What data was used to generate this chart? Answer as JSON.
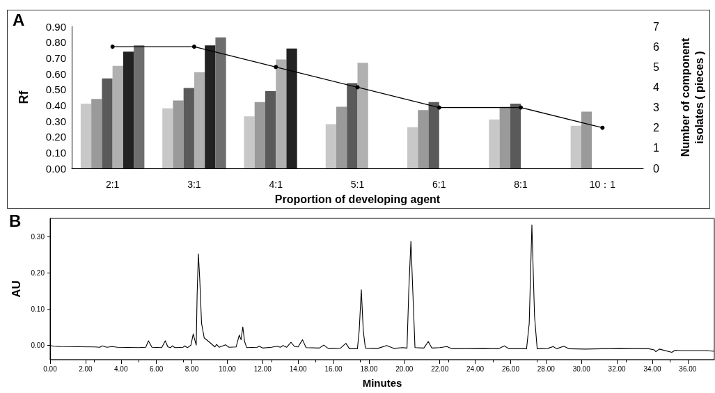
{
  "chart_data": [
    {
      "type": "bar",
      "title": "A",
      "xlabel": "Proportion of developing agent",
      "ylabel": "Rf",
      "y2label": "Number of component isolates ( pieces )",
      "categories": [
        "2:1",
        "3:1",
        "4:1",
        "5:1",
        "6:1",
        "8:1",
        "10：1"
      ],
      "series": [
        {
          "color": "#c8c8c8",
          "values": [
            0.41,
            0.38,
            0.33,
            0.28,
            0.26,
            0.31,
            0.27
          ]
        },
        {
          "color": "#9a9a9a",
          "values": [
            0.44,
            0.43,
            0.42,
            0.39,
            0.37,
            0.39,
            0.36
          ]
        },
        {
          "color": "#5a5a5a",
          "values": [
            0.57,
            0.51,
            0.49,
            0.54,
            0.42,
            0.41,
            null
          ]
        },
        {
          "color": "#b0b0b0",
          "values": [
            0.65,
            0.61,
            0.69,
            0.67,
            null,
            null,
            null
          ]
        },
        {
          "color": "#222222",
          "values": [
            0.74,
            0.78,
            0.76,
            null,
            null,
            null,
            null
          ]
        },
        {
          "color": "#6e6e6e",
          "values": [
            0.78,
            0.83,
            null,
            null,
            null,
            null,
            null
          ]
        },
        {
          "type": "line",
          "axis": "y2",
          "color": "#000000",
          "marker": "circle",
          "values": [
            6,
            6,
            5,
            4,
            3,
            3,
            2
          ]
        }
      ],
      "ylim": [
        0,
        0.9
      ],
      "yticks": [
        {
          "value": 0,
          "label": "0.00"
        },
        {
          "value": 0.1,
          "label": "0.10"
        },
        {
          "value": 0.2,
          "label": "0.20"
        },
        {
          "value": 0.3,
          "label": "0.30"
        },
        {
          "value": 0.4,
          "label": "0.40"
        },
        {
          "value": 0.5,
          "label": "0.50"
        },
        {
          "value": 0.6,
          "label": "0.60"
        },
        {
          "value": 0.7,
          "label": "0.70"
        },
        {
          "value": 0.8,
          "label": "0.80"
        },
        {
          "value": 0.9,
          "label": "0.90"
        }
      ],
      "y2lim": [
        0,
        7
      ],
      "y2ticks": [
        0,
        1,
        2,
        3,
        4,
        5,
        6,
        7
      ],
      "grid": false
    },
    {
      "type": "line",
      "title": "B",
      "xlabel": "Minutes",
      "ylabel": "AU",
      "marker": "none",
      "grid": false,
      "xlim": [
        0,
        37.5
      ],
      "xticks": [
        {
          "value": 0,
          "label": "0.00"
        },
        {
          "value": 2,
          "label": "2.00"
        },
        {
          "value": 4,
          "label": "4.00"
        },
        {
          "value": 6,
          "label": "6.00"
        },
        {
          "value": 8,
          "label": "8.00"
        },
        {
          "value": 10,
          "label": "10.00"
        },
        {
          "value": 12,
          "label": "12.00"
        },
        {
          "value": 14,
          "label": "14.00"
        },
        {
          "value": 16,
          "label": "16.00"
        },
        {
          "value": 18,
          "label": "18.00"
        },
        {
          "value": 20,
          "label": "20.00"
        },
        {
          "value": 22,
          "label": "22.00"
        },
        {
          "value": 24,
          "label": "24.00"
        },
        {
          "value": 26,
          "label": "26.00"
        },
        {
          "value": 28,
          "label": "28.00"
        },
        {
          "value": 30,
          "label": "30.00"
        },
        {
          "value": 32,
          "label": "32.00"
        },
        {
          "value": 34,
          "label": "34.00"
        },
        {
          "value": 36,
          "label": "36.00"
        }
      ],
      "ylim": [
        -0.04,
        0.35
      ],
      "yticks": [
        {
          "value": 0,
          "label": "0.00"
        },
        {
          "value": 0.1,
          "label": "0.10"
        },
        {
          "value": 0.2,
          "label": "0.20"
        },
        {
          "value": 0.3,
          "label": "0.30"
        }
      ],
      "series": [
        {
          "color": "#000000",
          "x": [
            0,
            0.2,
            0.6,
            2.5,
            2.8,
            2.95,
            3.2,
            3.5,
            3.8,
            5.0,
            5.4,
            5.55,
            5.75,
            6.3,
            6.5,
            6.65,
            6.8,
            6.9,
            7.05,
            7.5,
            7.6,
            7.75,
            7.95,
            8.08,
            8.18,
            8.25,
            8.3,
            8.37,
            8.45,
            8.55,
            8.7,
            9.0,
            9.3,
            9.4,
            9.55,
            9.9,
            10.1,
            10.5,
            10.68,
            10.78,
            10.88,
            10.98,
            11.1,
            11.7,
            11.8,
            12.0,
            12.5,
            12.8,
            13.0,
            13.15,
            13.35,
            13.6,
            13.8,
            14.0,
            14.25,
            14.45,
            15.2,
            15.45,
            15.7,
            16.4,
            16.7,
            16.9,
            17.35,
            17.45,
            17.57,
            17.68,
            17.8,
            18.5,
            19.0,
            19.4,
            19.9,
            20.15,
            20.25,
            20.37,
            20.5,
            20.6,
            21.1,
            21.35,
            21.55,
            22.0,
            22.4,
            22.7,
            24.5,
            25.3,
            25.65,
            25.9,
            26.9,
            27.05,
            27.2,
            27.35,
            27.5,
            28.1,
            28.4,
            28.6,
            29.0,
            29.3,
            30.2,
            32.1,
            33.8,
            34.1,
            34.2,
            34.4,
            35.1,
            35.3,
            35.6,
            37.0,
            37.5
          ],
          "values": [
            -0.001,
            -0.003,
            -0.004,
            -0.005,
            -0.006,
            -0.002,
            -0.006,
            -0.004,
            -0.006,
            -0.007,
            -0.006,
            0.012,
            -0.006,
            -0.007,
            0.012,
            -0.005,
            -0.007,
            -0.002,
            -0.007,
            -0.006,
            -0.002,
            -0.007,
            0.0,
            0.031,
            0.012,
            0.0,
            0.14,
            0.252,
            0.18,
            0.06,
            0.02,
            0.008,
            -0.005,
            0.002,
            -0.006,
            0.001,
            -0.006,
            -0.005,
            0.028,
            0.015,
            0.05,
            0.01,
            -0.007,
            -0.006,
            -0.003,
            -0.008,
            -0.006,
            -0.003,
            -0.006,
            -0.001,
            -0.006,
            0.008,
            -0.004,
            -0.005,
            0.015,
            -0.007,
            -0.008,
            0.0,
            -0.009,
            -0.008,
            0.005,
            -0.01,
            -0.01,
            0.04,
            0.153,
            0.04,
            -0.008,
            -0.009,
            -0.001,
            -0.009,
            -0.007,
            -0.008,
            0.15,
            0.287,
            0.12,
            -0.007,
            -0.008,
            0.01,
            -0.008,
            -0.007,
            -0.004,
            -0.01,
            -0.009,
            -0.01,
            -0.002,
            -0.01,
            -0.01,
            0.06,
            0.332,
            0.08,
            -0.01,
            -0.009,
            -0.004,
            -0.01,
            -0.003,
            -0.01,
            -0.011,
            -0.009,
            -0.01,
            -0.013,
            -0.018,
            -0.011,
            -0.02,
            -0.014,
            -0.015,
            -0.015,
            -0.017
          ]
        }
      ]
    }
  ]
}
